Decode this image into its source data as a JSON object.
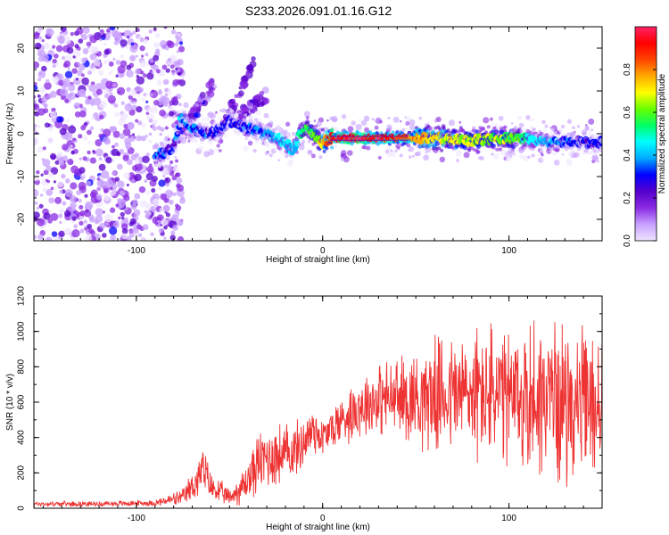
{
  "title": "S233.2026.091.01.16.G12",
  "chart_data": [
    {
      "type": "heatmap",
      "title": "S233.2026.091.01.16.G12",
      "xlabel": "Height of straight line (km)",
      "ylabel": "Frequency (Hz)",
      "xlim": [
        -155,
        150
      ],
      "ylim": [
        -25,
        25
      ],
      "x_ticks": [
        -100,
        0,
        100
      ],
      "x_tick_labels": [
        "-100",
        "0",
        "100"
      ],
      "y_ticks": [
        -20,
        -10,
        0,
        10,
        20
      ],
      "y_tick_labels": [
        "-20",
        "-10",
        "0",
        "10",
        "20"
      ],
      "colorbar": {
        "label": "Normalized spectral amplitude",
        "range": [
          0.0,
          1.0
        ],
        "ticks": [
          0.0,
          0.2,
          0.4,
          0.6,
          0.8
        ],
        "tick_labels": [
          "0.0",
          "0.2",
          "0.4",
          "0.6",
          "0.8"
        ],
        "colormap": [
          "#f0e6ff",
          "#c8a0ff",
          "#8a2be2",
          "#5500cc",
          "#0000ff",
          "#00aaff",
          "#00ffff",
          "#00ff66",
          "#66ff00",
          "#ffff00",
          "#ffaa00",
          "#ff4400",
          "#ff0000",
          "#ff2266"
        ]
      },
      "ridge": {
        "x": [
          -88,
          -80,
          -76,
          -70,
          -60,
          -55,
          -50,
          -45,
          -38,
          -30,
          -25,
          -20,
          -16,
          -12,
          -8,
          -4,
          0,
          5,
          20,
          40,
          60,
          80,
          100,
          110,
          120,
          130,
          140,
          150
        ],
        "y": [
          -5,
          -3,
          4,
          1,
          0,
          1,
          3,
          2,
          1,
          0,
          -1,
          -2,
          -4,
          0,
          1,
          -1,
          -2,
          -1,
          -1,
          -1,
          -1,
          -1.5,
          -1,
          -1,
          -2,
          -2,
          -2,
          -2
        ],
        "amplitude": [
          0.35,
          0.3,
          0.4,
          0.35,
          0.3,
          0.3,
          0.3,
          0.3,
          0.35,
          0.35,
          0.4,
          0.45,
          0.4,
          0.5,
          0.55,
          0.6,
          0.7,
          0.9,
          0.95,
          0.85,
          0.7,
          0.65,
          0.6,
          0.5,
          0.4,
          0.35,
          0.3,
          0.3
        ]
      }
    },
    {
      "type": "line",
      "xlabel": "Height of straight line (km)",
      "ylabel": "SNR (10 * v/v)",
      "xlim": [
        -155,
        150
      ],
      "ylim": [
        0,
        1200
      ],
      "x_ticks": [
        -100,
        0,
        100
      ],
      "x_tick_labels": [
        "-100",
        "0",
        "100"
      ],
      "y_ticks": [
        0,
        200,
        400,
        600,
        800,
        1000,
        1200
      ],
      "y_tick_labels": [
        "0",
        "200",
        "400",
        "600",
        "800",
        "1000",
        "1200"
      ],
      "series": [
        {
          "name": "SNR",
          "color": "#ee3333",
          "envelope_x": [
            -155,
            -120,
            -90,
            -75,
            -68,
            -64,
            -60,
            -50,
            -42,
            -35,
            -28,
            -20,
            -12,
            -5,
            0,
            10,
            20,
            30,
            40,
            50,
            60,
            70,
            80,
            90,
            100,
            110,
            120,
            130,
            140,
            150
          ],
          "envelope_mean": [
            25,
            25,
            30,
            60,
            150,
            220,
            120,
            60,
            130,
            250,
            300,
            300,
            350,
            450,
            400,
            500,
            580,
            620,
            620,
            630,
            640,
            650,
            650,
            650,
            600,
            620,
            640,
            600,
            580,
            580
          ],
          "envelope_amp": [
            12,
            12,
            15,
            40,
            90,
            110,
            70,
            40,
            90,
            140,
            160,
            150,
            120,
            130,
            90,
            120,
            150,
            170,
            190,
            230,
            260,
            280,
            310,
            330,
            330,
            380,
            380,
            360,
            340,
            340
          ]
        }
      ]
    }
  ]
}
